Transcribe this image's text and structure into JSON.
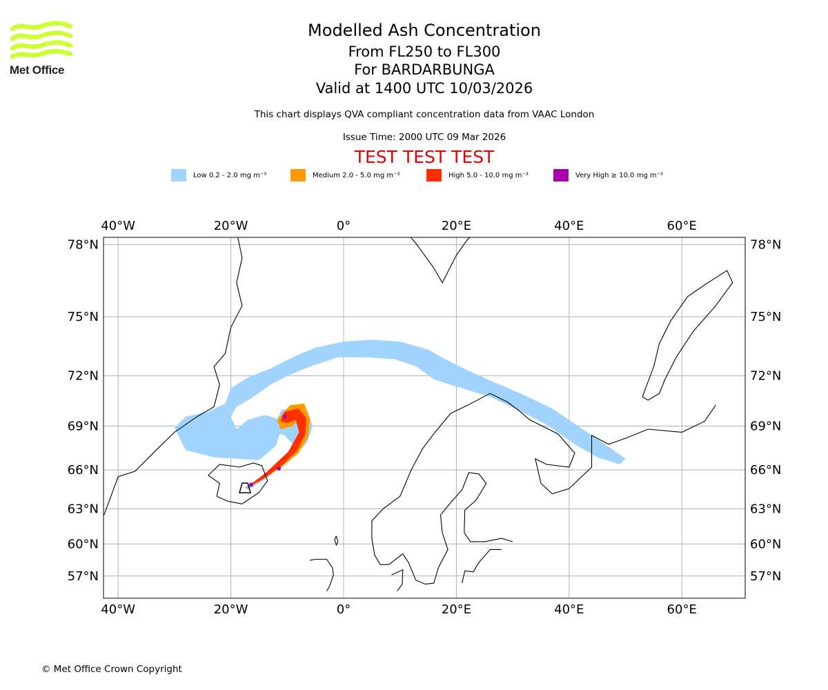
{
  "logo": {
    "text": "Met Office",
    "accent": "#ccff33"
  },
  "header": {
    "title": "Modelled Ash Concentration",
    "levels": "From FL250 to FL300",
    "volcano": "For BARDARBUNGA",
    "valid": "Valid at 1400 UTC 10/03/2026",
    "compliance": "This chart displays QVA compliant concentration data from VAAC London",
    "issue": "Issue Time: 2000 UTC 09 Mar 2026",
    "test": "TEST TEST TEST"
  },
  "legend": [
    {
      "label": "Low 0.2 - 2.0 mg m⁻³",
      "color": "#a0d3fd"
    },
    {
      "label": "Medium 2.0 - 5.0 mg m⁻³",
      "color": "#ff9a00"
    },
    {
      "label": "High 5.0 - 10.0 mg m⁻³",
      "color": "#ff2f00"
    },
    {
      "label": "Very High  ≥  10.0 mg m⁻³",
      "color": "#aa00aa"
    }
  ],
  "chart_data": {
    "type": "map",
    "title": "Modelled Ash Concentration",
    "lon_range": [
      -42.5,
      71
    ],
    "lat_range": [
      55.5,
      78.5
    ],
    "lon_ticks": [
      -40,
      -20,
      0,
      20,
      40,
      60
    ],
    "lon_tick_labels": [
      "40°W",
      "20°W",
      "0°",
      "20°E",
      "40°E",
      "60°E"
    ],
    "lat_ticks": [
      78,
      75,
      72,
      69,
      66,
      63,
      60,
      57
    ],
    "lat_tick_labels": [
      "78°N",
      "75°N",
      "72°N",
      "69°N",
      "66°N",
      "63°N",
      "60°N",
      "57°N"
    ],
    "grid": true,
    "source": {
      "name": "BARDARBUNGA",
      "lon": -17.5,
      "lat": 64.6
    },
    "plumes": [
      {
        "level": "Low",
        "color": "#a0d3fd",
        "outline": [
          [
            -30,
            68.9
          ],
          [
            -28,
            69.6
          ],
          [
            -24,
            69.9
          ],
          [
            -21,
            70.4
          ],
          [
            -20,
            71.3
          ],
          [
            -17,
            71.9
          ],
          [
            -13,
            72.4
          ],
          [
            -9,
            73.0
          ],
          [
            -5,
            73.5
          ],
          [
            0,
            73.8
          ],
          [
            5,
            73.9
          ],
          [
            10,
            73.8
          ],
          [
            15,
            73.4
          ],
          [
            18,
            72.9
          ],
          [
            22,
            72.3
          ],
          [
            27,
            71.6
          ],
          [
            32,
            70.9
          ],
          [
            37,
            70.1
          ],
          [
            42,
            68.9
          ],
          [
            46,
            67.9
          ],
          [
            50,
            66.8
          ],
          [
            49,
            66.4
          ],
          [
            45,
            66.9
          ],
          [
            41,
            67.8
          ],
          [
            36,
            69.1
          ],
          [
            31,
            70.0
          ],
          [
            26,
            70.8
          ],
          [
            21,
            71.3
          ],
          [
            16,
            71.8
          ],
          [
            13,
            72.5
          ],
          [
            9,
            72.9
          ],
          [
            4,
            73.0
          ],
          [
            -1,
            73.0
          ],
          [
            -6,
            72.5
          ],
          [
            -10,
            72.0
          ],
          [
            -13,
            71.5
          ],
          [
            -16,
            70.8
          ],
          [
            -19,
            70.2
          ],
          [
            -20,
            69.6
          ],
          [
            -19,
            68.8
          ],
          [
            -17,
            69.4
          ],
          [
            -14,
            69.7
          ],
          [
            -12,
            69.5
          ],
          [
            -11,
            68.9
          ],
          [
            -12,
            67.7
          ],
          [
            -15,
            66.7
          ],
          [
            -19,
            66.8
          ],
          [
            -23,
            66.9
          ],
          [
            -28,
            67.4
          ]
        ]
      },
      {
        "level": "Low",
        "color": "#a0d3fd",
        "outline": [
          [
            -17.5,
            64.7
          ],
          [
            -15,
            65.4
          ],
          [
            -12,
            66.1
          ],
          [
            -9,
            66.9
          ],
          [
            -6.5,
            67.9
          ],
          [
            -5.5,
            69.0
          ],
          [
            -6.5,
            70.0
          ],
          [
            -8,
            70.3
          ],
          [
            -11,
            70.0
          ],
          [
            -12,
            69.3
          ],
          [
            -11.5,
            68.5
          ],
          [
            -9,
            68.3
          ],
          [
            -7.5,
            68.9
          ],
          [
            -8,
            69.8
          ],
          [
            -10,
            70.0
          ],
          [
            -11.5,
            69.4
          ],
          [
            -10.5,
            68.4
          ],
          [
            -8,
            67.4
          ],
          [
            -11,
            66.3
          ],
          [
            -14,
            65.3
          ],
          [
            -17,
            64.5
          ]
        ]
      }
    ],
    "cores": [
      {
        "level": "Medium",
        "color": "#ff9a00",
        "outline": [
          [
            -17.4,
            64.6
          ],
          [
            -14,
            65.4
          ],
          [
            -11,
            66.2
          ],
          [
            -8,
            67.2
          ],
          [
            -6.3,
            68.3
          ],
          [
            -5.9,
            69.4
          ],
          [
            -7,
            70.4
          ],
          [
            -9.5,
            70.3
          ],
          [
            -11.8,
            69.4
          ],
          [
            -11.2,
            68.8
          ],
          [
            -9,
            69.0
          ],
          [
            -7.5,
            69.7
          ],
          [
            -7.6,
            68.6
          ],
          [
            -9.5,
            67.4
          ],
          [
            -13,
            66.0
          ],
          [
            -16.5,
            64.8
          ]
        ]
      },
      {
        "level": "High",
        "color": "#ff2f00",
        "outline": [
          [
            -17.3,
            64.6
          ],
          [
            -14,
            65.4
          ],
          [
            -11,
            66.3
          ],
          [
            -8.2,
            67.4
          ],
          [
            -6.8,
            68.5
          ],
          [
            -6.6,
            69.5
          ],
          [
            -8.0,
            70.1
          ],
          [
            -10.5,
            69.9
          ],
          [
            -11.2,
            69.3
          ],
          [
            -10.0,
            69.2
          ],
          [
            -8.5,
            69.4
          ],
          [
            -7.9,
            68.6
          ],
          [
            -9.8,
            67.3
          ],
          [
            -13.5,
            65.9
          ],
          [
            -16.8,
            64.8
          ]
        ]
      }
    ],
    "hotspots": [
      {
        "level": "Very High",
        "color": "#aa00aa",
        "lon": -16.4,
        "lat": 64.9
      },
      {
        "level": "Very High",
        "color": "#aa00aa",
        "lon": -11.5,
        "lat": 66.1
      },
      {
        "level": "Very High",
        "color": "#aa00aa",
        "lon": -10.5,
        "lat": 69.6
      }
    ]
  },
  "footer": {
    "copyright": "© Met Office Crown Copyright"
  }
}
